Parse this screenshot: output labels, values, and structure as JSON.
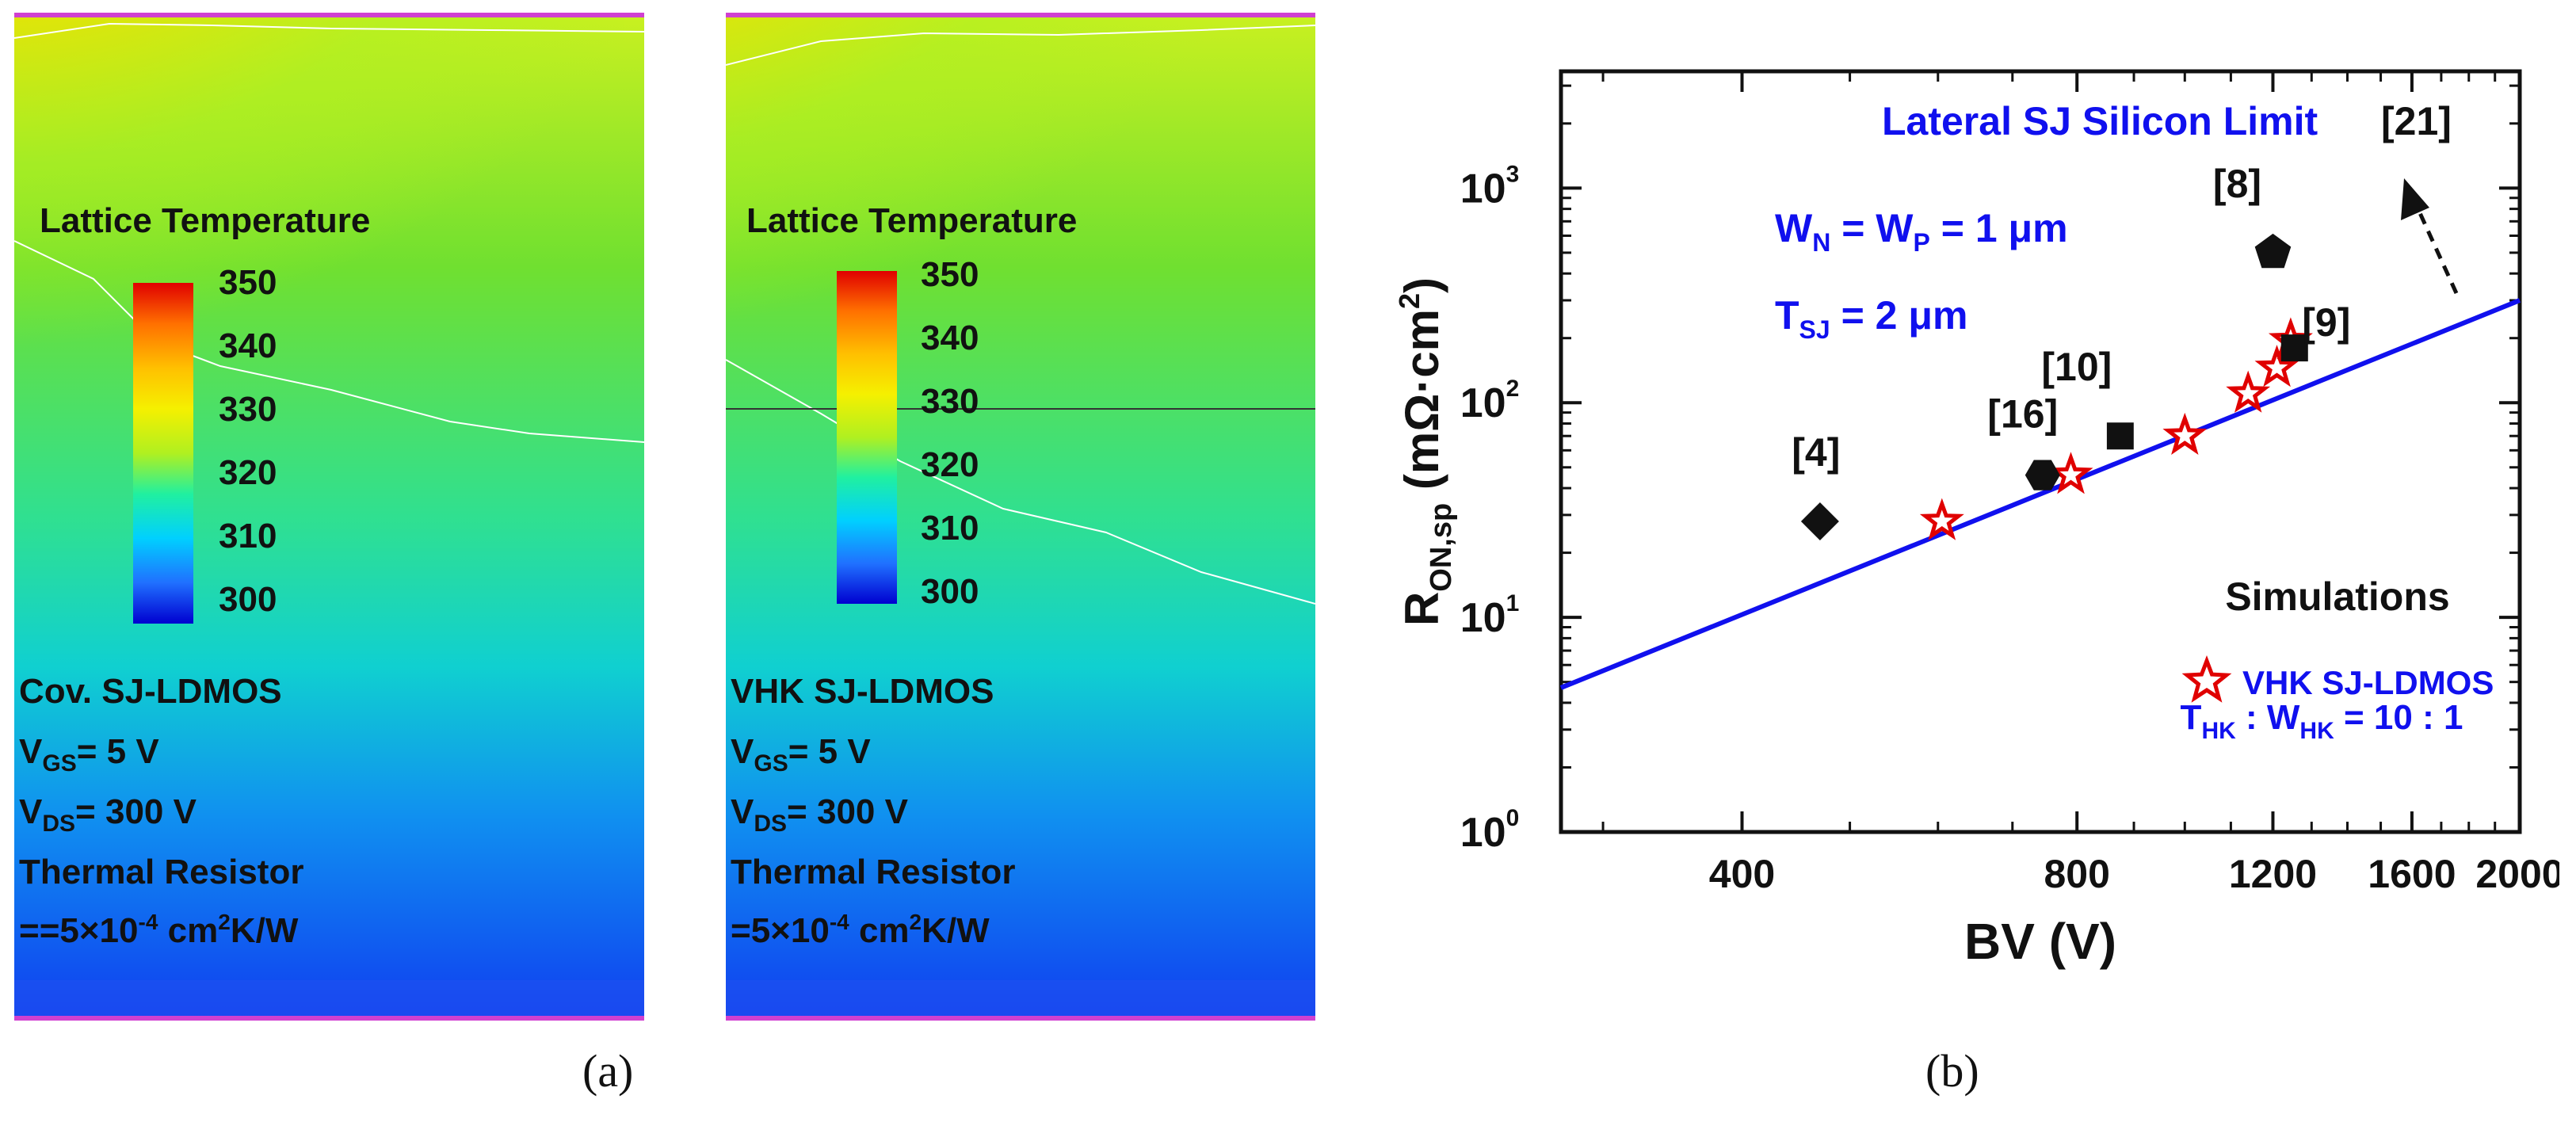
{
  "panel_a": {
    "caption": "(a)",
    "colorbar": {
      "title": "Lattice Temperature",
      "ticks": [
        "350",
        "340",
        "330",
        "320",
        "310",
        "300"
      ]
    },
    "left": {
      "device": "Cov. SJ-LDMOS",
      "vgs_label": "V",
      "vgs_sub": "GS",
      "vgs_value": "= 5 V",
      "vds_label": "V",
      "vds_sub": "DS",
      "vds_value": "= 300 V",
      "resistor_label": "Thermal Resistor",
      "resistor_value_prefix": "==5×10",
      "resistor_exp": "-4",
      "resistor_unit_a": " cm",
      "resistor_unit_exp": "2",
      "resistor_unit_b": "K/W"
    },
    "right": {
      "device": "VHK SJ-LDMOS",
      "vgs_label": "V",
      "vgs_sub": "GS",
      "vgs_value": "= 5 V",
      "vds_label": "V",
      "vds_sub": "DS",
      "vds_value": "= 300 V",
      "resistor_label": "Thermal Resistor",
      "resistor_value_prefix": "=5×10",
      "resistor_exp": "-4",
      "resistor_unit_a": " cm",
      "resistor_unit_exp": "2",
      "resistor_unit_b": "K/W"
    },
    "colors": {
      "hot": "#e00000",
      "warm": "#f5f000",
      "mid": "#80e020",
      "cool": "#20f0a0",
      "cold": "#0000d0"
    }
  },
  "chart_data": {
    "type": "scatter",
    "caption": "(b)",
    "xlabel": "BV (V)",
    "ylabel_main": "R",
    "ylabel_sub": "ON,sp",
    "ylabel_unit": " (mΩ·cm",
    "ylabel_unit_exp": "2",
    "ylabel_unit_end": ")",
    "x_scale": "log",
    "y_scale": "log",
    "xlim": [
      275,
      2000
    ],
    "ylim": [
      1,
      3500
    ],
    "x_ticks": [
      400,
      800,
      1200,
      1600,
      2000
    ],
    "x_tick_labels": [
      "400",
      "800",
      "1200",
      "1600",
      "2000"
    ],
    "y_ticks": [
      1,
      10,
      100,
      1000
    ],
    "y_tick_base": "10",
    "y_tick_exps": [
      "0",
      "1",
      "2",
      "3"
    ],
    "limit_line": {
      "label": "Lateral SJ Silicon Limit",
      "ref": "[21]",
      "color": "#1010ee",
      "points": [
        [
          275,
          4.7
        ],
        [
          2000,
          300
        ]
      ]
    },
    "annotations": {
      "wn_wp": "W",
      "wn_sub": "N",
      "wn_mid": " = W",
      "wp_sub": "P",
      "wn_end": " = 1 μm",
      "tsj": "T",
      "tsj_sub": "SJ",
      "tsj_end": " = 2 μm",
      "simulations": "Simulations",
      "legend_label": "VHK SJ-LDMOS",
      "thk": "T",
      "thk_sub": "HK",
      "thk_mid": " : W",
      "whk_sub": "HK",
      "thk_end": " = 10 : 1"
    },
    "references": [
      {
        "label": "[4]",
        "marker": "diamond",
        "x": 470,
        "y": 28
      },
      {
        "label": "[16]",
        "marker": "hexagon",
        "x": 745,
        "y": 46
      },
      {
        "label": "[10]",
        "marker": "square",
        "x": 875,
        "y": 70
      },
      {
        "label": "[8]",
        "marker": "pentagon",
        "x": 1200,
        "y": 500
      },
      {
        "label": "[9]",
        "marker": "square",
        "x": 1255,
        "y": 180
      }
    ],
    "simulations": {
      "name": "VHK SJ-LDMOS",
      "marker": "star",
      "color": "#e00000",
      "x": [
        605,
        790,
        1000,
        1140,
        1210,
        1245
      ],
      "y": [
        28,
        46,
        70,
        110,
        145,
        195
      ]
    }
  }
}
